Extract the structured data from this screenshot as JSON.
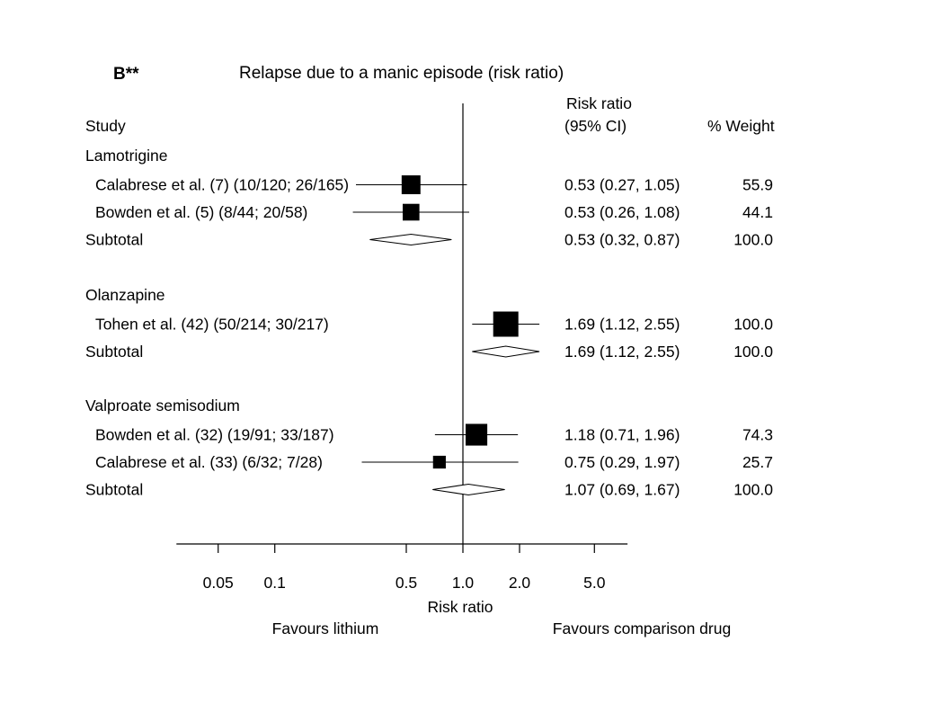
{
  "chart_data": {
    "type": "forest",
    "panel_label": "B**",
    "title": "Relapse due to a manic episode (risk ratio)",
    "column_headers": {
      "study": "Study",
      "ci_line1": "Risk ratio",
      "ci_line2": "(95% CI)",
      "weight": "% Weight"
    },
    "x_scale": "log",
    "xlim": [
      0.03,
      7.5
    ],
    "null_value": 1.0,
    "x_ticks": [
      {
        "value": 0.05,
        "label": "0.05"
      },
      {
        "value": 0.1,
        "label": "0.1"
      },
      {
        "value": 0.5,
        "label": "0.5"
      },
      {
        "value": 1.0,
        "label": "1.0"
      },
      {
        "value": 2.0,
        "label": "2.0"
      },
      {
        "value": 5.0,
        "label": "5.0"
      }
    ],
    "xlabel": "Risk ratio",
    "favours_left": "Favours lithium",
    "favours_right": "Favours comparison drug",
    "groups": [
      {
        "name": "Lamotrigine",
        "studies": [
          {
            "label": "Calabrese et al. (7) (10/120; 26/165)",
            "rr": 0.53,
            "lo": 0.27,
            "hi": 1.05,
            "ci_text": "0.53 (0.27, 1.05)",
            "weight": "55.9"
          },
          {
            "label": "Bowden et al. (5) (8/44; 20/58)",
            "rr": 0.53,
            "lo": 0.26,
            "hi": 1.08,
            "ci_text": "0.53 (0.26, 1.08)",
            "weight": "44.1"
          }
        ],
        "subtotal": {
          "label": "Subtotal",
          "rr": 0.53,
          "lo": 0.32,
          "hi": 0.87,
          "ci_text": "0.53 (0.32, 0.87)",
          "weight": "100.0"
        }
      },
      {
        "name": "Olanzapine",
        "studies": [
          {
            "label": "Tohen et al. (42) (50/214; 30/217)",
            "rr": 1.69,
            "lo": 1.12,
            "hi": 2.55,
            "ci_text": "1.69 (1.12, 2.55)",
            "weight": "100.0"
          }
        ],
        "subtotal": {
          "label": "Subtotal",
          "rr": 1.69,
          "lo": 1.12,
          "hi": 2.55,
          "ci_text": "1.69 (1.12, 2.55)",
          "weight": "100.0"
        }
      },
      {
        "name": "Valproate semisodium",
        "studies": [
          {
            "label": "Bowden et al. (32) (19/91; 33/187)",
            "rr": 1.18,
            "lo": 0.71,
            "hi": 1.96,
            "ci_text": "1.18 (0.71, 1.96)",
            "weight": "74.3"
          },
          {
            "label": "Calabrese et al. (33) (6/32; 7/28)",
            "rr": 0.75,
            "lo": 0.29,
            "hi": 1.97,
            "ci_text": "0.75 (0.29, 1.97)",
            "weight": "25.7"
          }
        ],
        "subtotal": {
          "label": "Subtotal",
          "rr": 1.07,
          "lo": 0.69,
          "hi": 1.67,
          "ci_text": "1.07 (0.69, 1.67)",
          "weight": "100.0"
        }
      }
    ]
  }
}
